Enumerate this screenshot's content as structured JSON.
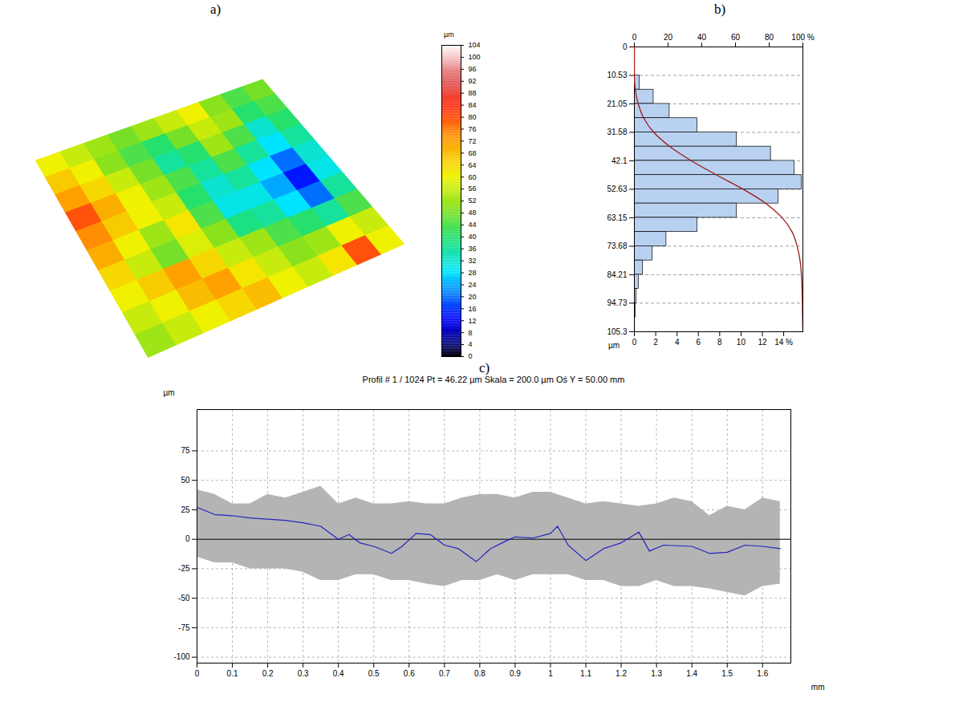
{
  "chart_data": [
    {
      "panel": "a)",
      "type": "heatmap",
      "tick_labels": false,
      "cells": [
        [
          60,
          56,
          52,
          48,
          52,
          56,
          60,
          50,
          44,
          48
        ],
        [
          66,
          60,
          50,
          44,
          40,
          48,
          56,
          52,
          40,
          44
        ],
        [
          72,
          64,
          56,
          48,
          36,
          40,
          52,
          44,
          32,
          40
        ],
        [
          80,
          70,
          60,
          52,
          44,
          36,
          44,
          36,
          28,
          36
        ],
        [
          74,
          66,
          60,
          56,
          40,
          32,
          36,
          28,
          20,
          32
        ],
        [
          70,
          60,
          52,
          62,
          44,
          30,
          30,
          24,
          14,
          30
        ],
        [
          64,
          56,
          48,
          58,
          50,
          38,
          36,
          28,
          20,
          36
        ],
        [
          60,
          66,
          72,
          64,
          56,
          52,
          44,
          40,
          36,
          44
        ],
        [
          56,
          60,
          68,
          72,
          62,
          56,
          50,
          52,
          60,
          56
        ],
        [
          52,
          56,
          60,
          64,
          68,
          60,
          56,
          62,
          80,
          60
        ]
      ],
      "colorbar": {
        "label": "µm",
        "range": [
          0,
          104
        ],
        "ticks": [
          0,
          4,
          8,
          12,
          16,
          20,
          24,
          28,
          32,
          36,
          40,
          44,
          48,
          52,
          56,
          60,
          64,
          68,
          72,
          76,
          80,
          84,
          88,
          92,
          96,
          100,
          104
        ]
      }
    },
    {
      "panel": "b)",
      "type": "histogram",
      "orientation": "horizontal",
      "ylabel": "µm",
      "bins": [
        0,
        5.27,
        10.53,
        15.79,
        21.05,
        26.32,
        31.58,
        36.84,
        42.1,
        47.37,
        52.63,
        57.89,
        63.15,
        68.42,
        73.68,
        78.95,
        84.21,
        89.47,
        94.73,
        100.02,
        105.3
      ],
      "values": [
        0,
        0,
        0.5,
        1.8,
        3.3,
        5.9,
        9.6,
        12.8,
        15.0,
        15.7,
        13.5,
        9.6,
        5.9,
        3.0,
        1.7,
        0.8,
        0.4,
        0.2,
        0.1,
        0.05
      ],
      "color": "#b9d1f0",
      "xlim": [
        0,
        15.8
      ],
      "xticks": [
        0,
        2,
        4,
        6,
        8,
        10,
        12,
        {
          "value": 14,
          "label": "14 %"
        }
      ],
      "ylim": [
        0,
        105.3
      ],
      "yticks": [
        0,
        10.53,
        21.05,
        31.58,
        42.1,
        52.63,
        63.15,
        73.68,
        84.21,
        94.73,
        105.3
      ],
      "grid": true,
      "cumulative": {
        "values": [
          0,
          0,
          0,
          0.5,
          2.3,
          5.6,
          11.5,
          21.1,
          33.9,
          48.9,
          64.6,
          78.1,
          87.7,
          93.6,
          96.6,
          98.3,
          99.1,
          99.5,
          99.7,
          99.8,
          100
        ],
        "color": "#a01818",
        "xlim": [
          0,
          100
        ],
        "xticks": [
          0,
          20,
          40,
          60,
          80,
          {
            "value": 100,
            "label": "100 %"
          }
        ]
      }
    },
    {
      "panel": "c)",
      "type": "line",
      "title": "Profil # 1 / 1024 Pt = 46.22 µm  Skala = 200.0 µm Oś Y = 50.00 mm",
      "xlabel": "mm",
      "ylabel": "µm",
      "x": [
        0,
        0.05,
        0.1,
        0.15,
        0.2,
        0.25,
        0.3,
        0.35,
        0.4,
        0.43,
        0.46,
        0.5,
        0.55,
        0.58,
        0.62,
        0.66,
        0.7,
        0.74,
        0.79,
        0.83,
        0.87,
        0.9,
        0.95,
        1.0,
        1.02,
        1.05,
        1.1,
        1.15,
        1.2,
        1.25,
        1.28,
        1.32,
        1.4,
        1.45,
        1.5,
        1.55,
        1.6,
        1.65
      ],
      "values": [
        27,
        21,
        20,
        18,
        17,
        16,
        14,
        11,
        0,
        4,
        -3,
        -6,
        -12,
        -6,
        5,
        4,
        -5,
        -8,
        -19,
        -8,
        -2,
        2,
        1,
        5,
        11,
        -5,
        -18,
        -8,
        -3,
        6,
        -10,
        -5,
        -6,
        -12,
        -11,
        -5,
        -6,
        -8
      ],
      "color": "#2323c0",
      "band": {
        "x": [
          0,
          0.05,
          0.1,
          0.15,
          0.2,
          0.25,
          0.3,
          0.35,
          0.4,
          0.45,
          0.5,
          0.55,
          0.6,
          0.65,
          0.7,
          0.75,
          0.8,
          0.85,
          0.9,
          0.95,
          1.0,
          1.05,
          1.1,
          1.15,
          1.2,
          1.25,
          1.3,
          1.35,
          1.4,
          1.45,
          1.5,
          1.55,
          1.6,
          1.65
        ],
        "upper": [
          42,
          38,
          30,
          30,
          38,
          35,
          40,
          45,
          30,
          35,
          30,
          30,
          32,
          30,
          30,
          35,
          38,
          38,
          35,
          40,
          40,
          35,
          30,
          32,
          30,
          28,
          30,
          35,
          32,
          20,
          28,
          25,
          35,
          32
        ],
        "lower": [
          -15,
          -20,
          -20,
          -25,
          -25,
          -25,
          -28,
          -35,
          -35,
          -30,
          -30,
          -35,
          -35,
          -38,
          -40,
          -35,
          -35,
          -30,
          -35,
          -30,
          -30,
          -30,
          -35,
          -35,
          -40,
          -40,
          -35,
          -40,
          -40,
          -42,
          -45,
          -48,
          -40,
          -38
        ],
        "color": "#b4b4b4"
      },
      "xlim": [
        0,
        1.68
      ],
      "xticks": [
        0,
        0.1,
        0.2,
        0.3,
        0.4,
        0.5,
        0.6,
        0.7,
        0.8,
        0.9,
        1,
        1.1,
        1.2,
        1.3,
        1.4,
        1.5,
        1.6
      ],
      "ylim": [
        -105,
        110
      ],
      "yticks": [
        -100,
        -75,
        -50,
        -25,
        0,
        25,
        50,
        75
      ],
      "grid": true
    }
  ]
}
